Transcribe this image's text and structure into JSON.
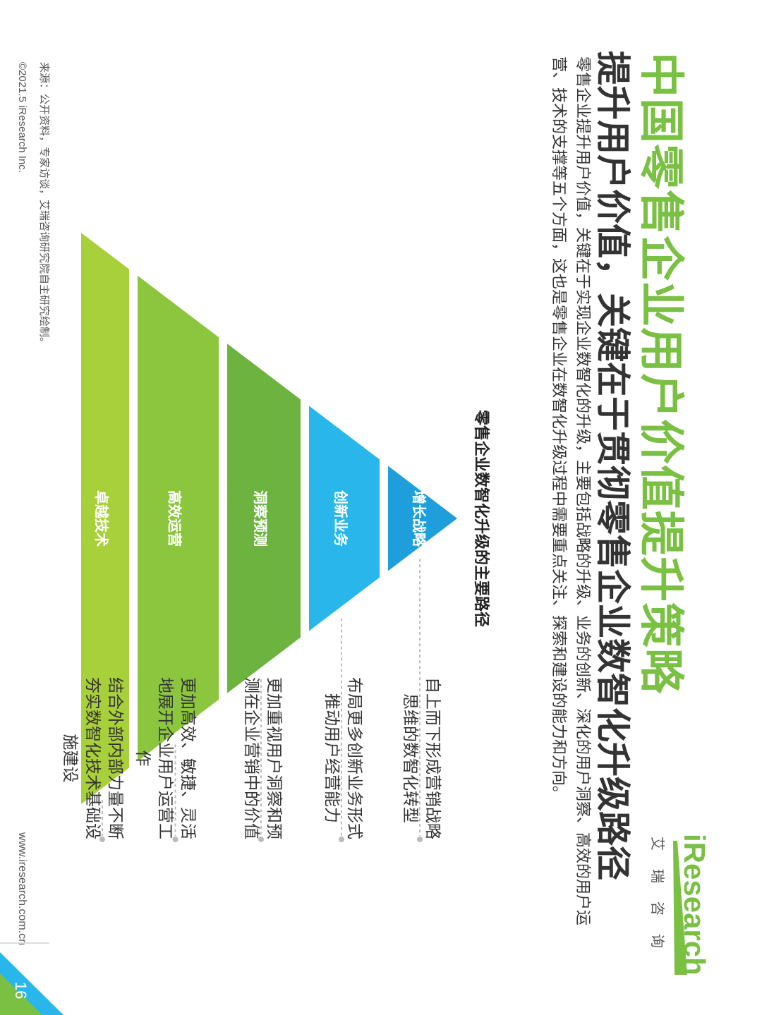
{
  "header": {
    "title": "中国零售企业用户价值提升策略",
    "subtitle": "提升用户价值，关键在于贯彻零售企业数智化升级路径",
    "description": "零售企业提升用户价值，关键在于实现企业数智化的升级，主要包括战略的升级、业务的创新、深化的用户洞察、高效的用户运营、技术的支撑等五个方面，这也是零售企业在数智化升级过程中需要重点关注、探索和建设的能力和方向。"
  },
  "logo": {
    "word": "iResearch",
    "chinese": "艾瑞咨询"
  },
  "chart": {
    "title": "零售企业数智化升级的主要路径",
    "levels": [
      {
        "label": "增长战略",
        "description": "自上而下形成营销战略思维的数智化转型",
        "color": "#1e9fdb"
      },
      {
        "label": "创新业务",
        "description": "布局更多创新业务形式推动用户经营能力",
        "color": "#29b6ea"
      },
      {
        "label": "洞察预测",
        "description": "更加重视用户洞察和预测在企业营销中的价值",
        "color": "#6db33f"
      },
      {
        "label": "高效运营",
        "description": "更加高效、敏捷、灵活地展开企业用户运营工作",
        "color": "#8cc63f"
      },
      {
        "label": "卓越技术",
        "description": "结合外部内部力量不断夯实数智化技术基础设施建设",
        "color": "#a8d03a"
      }
    ]
  },
  "footer": {
    "source": "来源：公开资料，专家访谈，艾瑞咨询研究院自主研究绘制。",
    "copyright": "©2021.5 iResearch Inc.",
    "website": "www.iresearch.com.cn",
    "page": "16"
  },
  "colors": {
    "brand_green": "#7ac143",
    "blue": "#1e9fdb",
    "light_blue": "#29b6ea"
  }
}
